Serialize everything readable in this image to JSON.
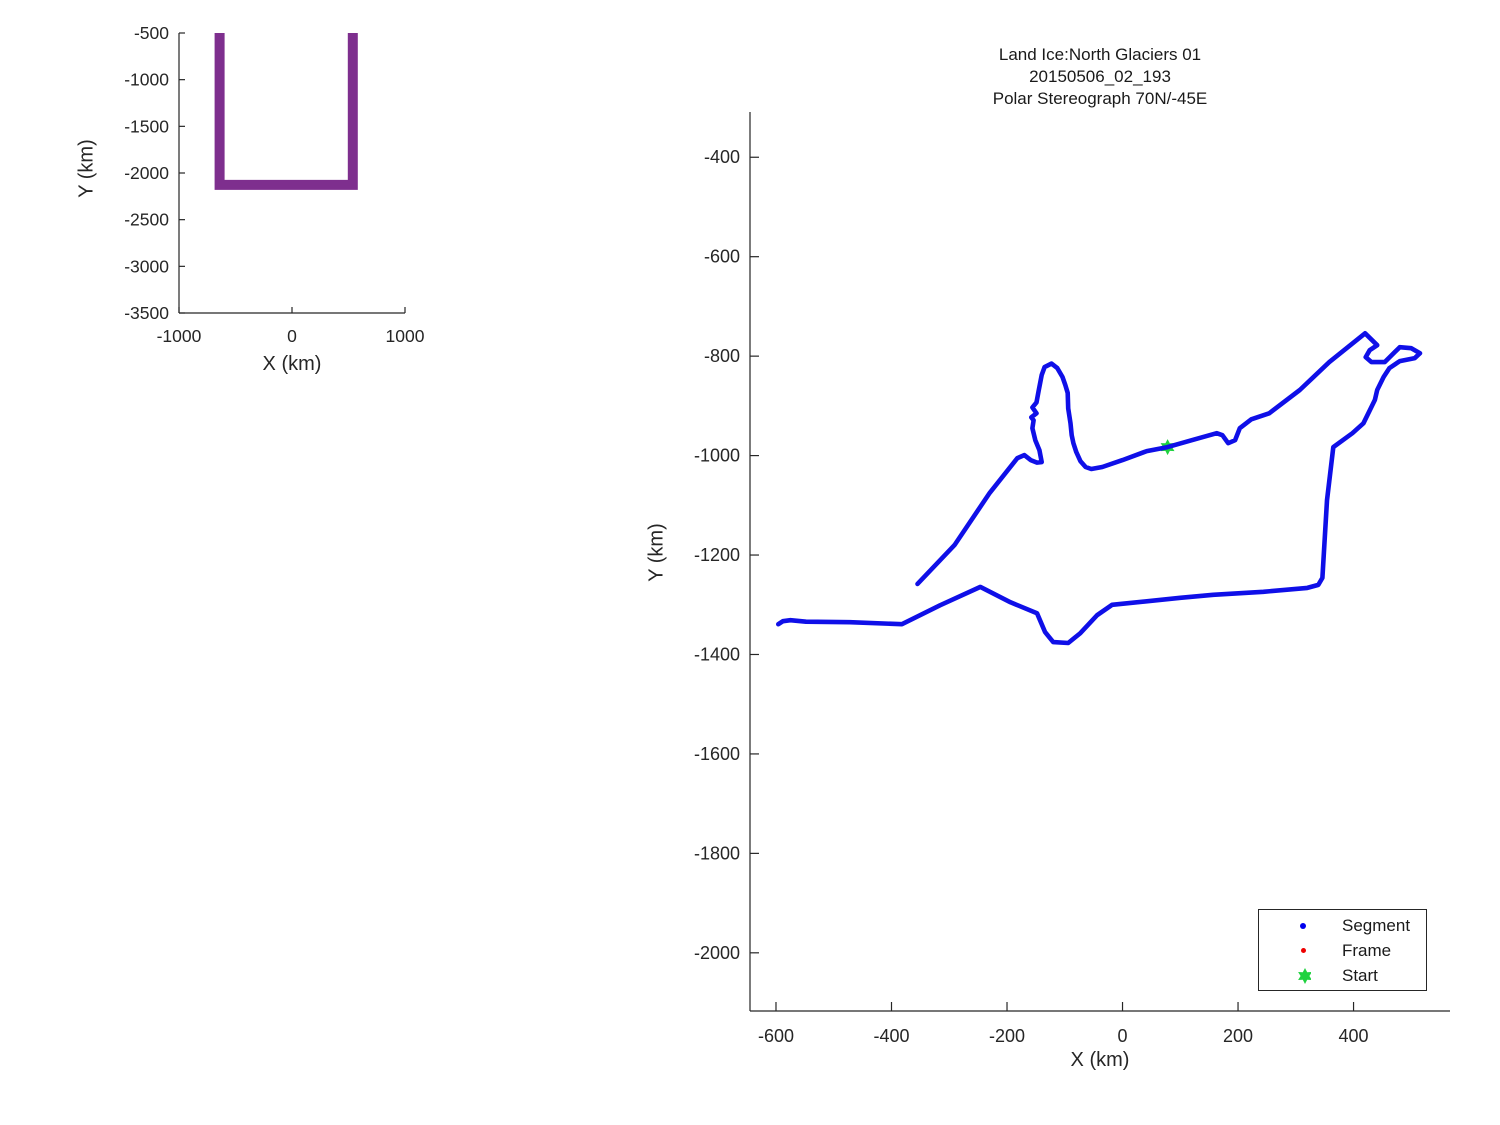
{
  "chart_data": [
    {
      "id": "overview",
      "type": "line",
      "title": "",
      "xlabel": "X (km)",
      "ylabel": "Y (km)",
      "xlim": [
        -1000,
        1000
      ],
      "ylim": [
        -3500,
        -500
      ],
      "xticks": [
        -1000,
        0,
        1000
      ],
      "yticks": [
        -500,
        -1000,
        -1500,
        -2000,
        -2500,
        -3000,
        -3500
      ],
      "grid": false,
      "legend_shown": false,
      "series": [
        {
          "name": "mission-ground-track",
          "color": "#7E2F8E",
          "line_width": 10,
          "join": "miter",
          "points": [
            [
              -641,
              -500
            ],
            [
              -641,
              -2128
            ],
            [
              538,
              -2128
            ],
            [
              538,
              -500
            ]
          ]
        }
      ]
    },
    {
      "id": "main",
      "type": "line",
      "title_lines": [
        "Land Ice:North Glaciers 01",
        "20150506_02_193",
        "Polar Stereograph 70N/-45E"
      ],
      "xlabel": "X (km)",
      "ylabel": "Y (km)",
      "xlim": [
        -645,
        567
      ],
      "ylim": [
        -2117,
        -309
      ],
      "xticks": [
        -600,
        -400,
        -200,
        0,
        200,
        400
      ],
      "yticks": [
        -400,
        -600,
        -800,
        -1000,
        -1200,
        -1400,
        -1600,
        -1800,
        -2000
      ],
      "grid": false,
      "series": [
        {
          "name": "segment-track",
          "color": "#0F0FE8",
          "line_width": 4.6,
          "join": "round",
          "points": [
            [
              -355,
              -1258
            ],
            [
              -291,
              -1180
            ],
            [
              -230,
              -1075
            ],
            [
              -182,
              -1005
            ],
            [
              -170,
              -999
            ],
            [
              -159,
              -1009
            ],
            [
              -148,
              -1014
            ],
            [
              -140,
              -1013
            ],
            [
              -144,
              -989
            ],
            [
              -151,
              -969
            ],
            [
              -156,
              -945
            ],
            [
              -154,
              -929
            ],
            [
              -158,
              -923
            ],
            [
              -149,
              -915
            ],
            [
              -156,
              -903
            ],
            [
              -149,
              -893
            ],
            [
              -145,
              -868
            ],
            [
              -140,
              -838
            ],
            [
              -135,
              -822
            ],
            [
              -123,
              -815
            ],
            [
              -113,
              -824
            ],
            [
              -104,
              -842
            ],
            [
              -99,
              -858
            ],
            [
              -95,
              -874
            ],
            [
              -94,
              -905
            ],
            [
              -90,
              -935
            ],
            [
              -88,
              -959
            ],
            [
              -85,
              -975
            ],
            [
              -80,
              -993
            ],
            [
              -73,
              -1011
            ],
            [
              -64,
              -1023
            ],
            [
              -54,
              -1027
            ],
            [
              -35,
              -1023
            ],
            [
              0,
              -1009
            ],
            [
              42,
              -991
            ],
            [
              78,
              -983
            ],
            [
              120,
              -969
            ],
            [
              163,
              -955
            ],
            [
              173,
              -959
            ],
            [
              183,
              -975
            ],
            [
              195,
              -969
            ],
            [
              203,
              -945
            ],
            [
              223,
              -927
            ],
            [
              254,
              -915
            ],
            [
              307,
              -868
            ],
            [
              358,
              -812
            ],
            [
              420,
              -754
            ],
            [
              441,
              -778
            ],
            [
              428,
              -788
            ],
            [
              421,
              -802
            ],
            [
              431,
              -812
            ],
            [
              454,
              -812
            ],
            [
              471,
              -792
            ],
            [
              480,
              -782
            ],
            [
              500,
              -784
            ],
            [
              515,
              -794
            ],
            [
              506,
              -804
            ],
            [
              480,
              -810
            ],
            [
              462,
              -824
            ],
            [
              452,
              -842
            ],
            [
              441,
              -868
            ],
            [
              437,
              -888
            ],
            [
              417,
              -935
            ],
            [
              398,
              -955
            ],
            [
              365,
              -983
            ],
            [
              354,
              -1090
            ],
            [
              346,
              -1246
            ],
            [
              339,
              -1260
            ],
            [
              320,
              -1266
            ],
            [
              244,
              -1274
            ],
            [
              157,
              -1280
            ],
            [
              100,
              -1286
            ],
            [
              -18,
              -1300
            ],
            [
              -44,
              -1321
            ],
            [
              -73,
              -1357
            ],
            [
              -94,
              -1377
            ],
            [
              -120,
              -1375
            ],
            [
              -134,
              -1355
            ],
            [
              -148,
              -1317
            ],
            [
              -194,
              -1295
            ],
            [
              -246,
              -1264
            ],
            [
              -316,
              -1301
            ],
            [
              -382,
              -1339
            ],
            [
              -472,
              -1335
            ],
            [
              -548,
              -1334
            ],
            [
              -575,
              -1331
            ],
            [
              -588,
              -1333
            ],
            [
              -596,
              -1339
            ]
          ]
        }
      ],
      "start_marker": {
        "label": "Start",
        "shape": "hexagram",
        "color": "#1FD23F",
        "point": [
          78,
          -983
        ],
        "size": 8
      },
      "legend": {
        "position": "bottom-right",
        "items": [
          {
            "label": "Segment",
            "marker": "dot",
            "color": "#0000EE",
            "size": 6
          },
          {
            "label": "Frame",
            "marker": "dot",
            "color": "#EE0000",
            "size": 5
          },
          {
            "label": "Start",
            "marker": "hexagram",
            "color": "#1FD23F",
            "size": 16
          }
        ]
      }
    }
  ]
}
